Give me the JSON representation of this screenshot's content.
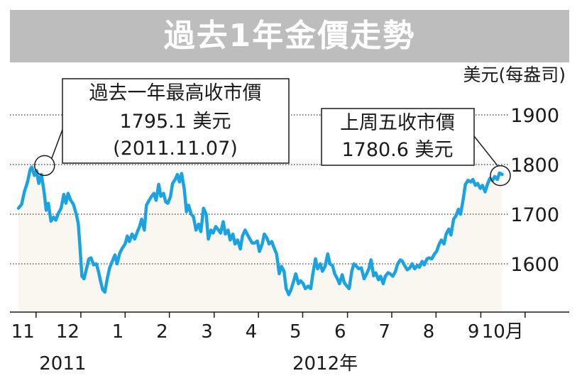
{
  "title": "過去1年金價走勢",
  "chart_data": {
    "type": "line",
    "title": "過去1年金價走勢",
    "ylabel": "美元(每盎司)",
    "ylim": [
      1500,
      1900
    ],
    "yticks": [
      1600,
      1700,
      1800,
      1900
    ],
    "ytick_labels": [
      "1600",
      "1700",
      "1800",
      "1900"
    ],
    "xlim": [
      2011.8,
      2012.87
    ],
    "xticks": [
      2011.833,
      2011.917,
      2012.0,
      2012.083,
      2012.167,
      2012.25,
      2012.333,
      2012.417,
      2012.5,
      2012.583,
      2012.667,
      2012.75
    ],
    "xtick_labels": [
      "11",
      "12",
      "1",
      "2",
      "3",
      "4",
      "5",
      "6",
      "7",
      "8",
      "9",
      "10月"
    ],
    "year_labels": [
      {
        "x": 2011.883,
        "label": "2011"
      },
      {
        "x": 2012.375,
        "label": "2012年"
      }
    ],
    "grid": true,
    "line_color": "#1aa3e0",
    "fill_color": "#faf7f1",
    "annotations": [
      {
        "lines": [
          "過去一年最高收市價",
          "1795.1 美元",
          "(2011.11.07)"
        ],
        "x": 2011.825,
        "y": 1795.1
      },
      {
        "lines": [
          "上周五收市價",
          "1780.6 美元"
        ],
        "x": 2012.77,
        "y": 1780.6
      }
    ],
    "series": [
      {
        "values": [
          [
            2011.8,
            1712
          ],
          [
            2011.806,
            1720
          ],
          [
            2011.811,
            1745
          ],
          [
            2011.817,
            1765
          ],
          [
            2011.822,
            1790
          ],
          [
            2011.825,
            1795
          ],
          [
            2011.83,
            1778
          ],
          [
            2011.834,
            1788
          ],
          [
            2011.838,
            1762
          ],
          [
            2011.843,
            1780
          ],
          [
            2011.848,
            1745
          ],
          [
            2011.852,
            1708
          ],
          [
            2011.856,
            1722
          ],
          [
            2011.861,
            1686
          ],
          [
            2011.866,
            1694
          ],
          [
            2011.87,
            1688
          ],
          [
            2011.875,
            1702
          ],
          [
            2011.88,
            1712
          ],
          [
            2011.885,
            1740
          ],
          [
            2011.889,
            1722
          ],
          [
            2011.893,
            1742
          ],
          [
            2011.898,
            1728
          ],
          [
            2011.903,
            1720
          ],
          [
            2011.908,
            1702
          ],
          [
            2011.912,
            1682
          ],
          [
            2011.915,
            1640
          ],
          [
            2011.919,
            1575
          ],
          [
            2011.923,
            1570
          ],
          [
            2011.928,
            1592
          ],
          [
            2011.932,
            1610
          ],
          [
            2011.936,
            1612
          ],
          [
            2011.941,
            1598
          ],
          [
            2011.946,
            1600
          ],
          [
            2011.95,
            1585
          ],
          [
            2011.954,
            1565
          ],
          [
            2011.958,
            1548
          ],
          [
            2011.962,
            1543
          ],
          [
            2011.967,
            1573
          ],
          [
            2011.971,
            1592
          ],
          [
            2011.976,
            1605
          ],
          [
            2011.981,
            1618
          ],
          [
            2011.985,
            1600
          ],
          [
            2011.99,
            1622
          ],
          [
            2011.995,
            1632
          ],
          [
            2012.0,
            1640
          ],
          [
            2012.004,
            1656
          ],
          [
            2012.008,
            1645
          ],
          [
            2012.013,
            1660
          ],
          [
            2012.018,
            1650
          ],
          [
            2012.022,
            1662
          ],
          [
            2012.027,
            1675
          ],
          [
            2012.031,
            1690
          ],
          [
            2012.036,
            1668
          ],
          [
            2012.04,
            1718
          ],
          [
            2012.045,
            1728
          ],
          [
            2012.049,
            1735
          ],
          [
            2012.054,
            1742
          ],
          [
            2012.058,
            1728
          ],
          [
            2012.063,
            1760
          ],
          [
            2012.067,
            1736
          ],
          [
            2012.072,
            1742
          ],
          [
            2012.076,
            1725
          ],
          [
            2012.08,
            1722
          ],
          [
            2012.085,
            1735
          ],
          [
            2012.089,
            1762
          ],
          [
            2012.094,
            1770
          ],
          [
            2012.098,
            1780
          ],
          [
            2012.102,
            1765
          ],
          [
            2012.106,
            1782
          ],
          [
            2012.111,
            1750
          ],
          [
            2012.115,
            1705
          ],
          [
            2012.119,
            1718
          ],
          [
            2012.124,
            1700
          ],
          [
            2012.128,
            1695
          ],
          [
            2012.133,
            1668
          ],
          [
            2012.138,
            1680
          ],
          [
            2012.142,
            1665
          ],
          [
            2012.147,
            1712
          ],
          [
            2012.152,
            1700
          ],
          [
            2012.156,
            1650
          ],
          [
            2012.161,
            1668
          ],
          [
            2012.165,
            1662
          ],
          [
            2012.17,
            1675
          ],
          [
            2012.175,
            1668
          ],
          [
            2012.179,
            1662
          ],
          [
            2012.184,
            1685
          ],
          [
            2012.188,
            1660
          ],
          [
            2012.193,
            1668
          ],
          [
            2012.197,
            1648
          ],
          [
            2012.202,
            1660
          ],
          [
            2012.206,
            1640
          ],
          [
            2012.211,
            1648
          ],
          [
            2012.216,
            1630
          ],
          [
            2012.22,
            1656
          ],
          [
            2012.225,
            1668
          ],
          [
            2012.229,
            1660
          ],
          [
            2012.234,
            1650
          ],
          [
            2012.238,
            1642
          ],
          [
            2012.243,
            1642
          ],
          [
            2012.248,
            1646
          ],
          [
            2012.252,
            1625
          ],
          [
            2012.257,
            1640
          ],
          [
            2012.261,
            1660
          ],
          [
            2012.266,
            1652
          ],
          [
            2012.27,
            1640
          ],
          [
            2012.275,
            1645
          ],
          [
            2012.28,
            1630
          ],
          [
            2012.284,
            1620
          ],
          [
            2012.289,
            1580
          ],
          [
            2012.293,
            1595
          ],
          [
            2012.298,
            1585
          ],
          [
            2012.302,
            1550
          ],
          [
            2012.307,
            1538
          ],
          [
            2012.311,
            1548
          ],
          [
            2012.316,
            1565
          ],
          [
            2012.32,
            1580
          ],
          [
            2012.325,
            1560
          ],
          [
            2012.329,
            1566
          ],
          [
            2012.334,
            1560
          ],
          [
            2012.338,
            1550
          ],
          [
            2012.343,
            1555
          ],
          [
            2012.348,
            1550
          ],
          [
            2012.352,
            1580
          ],
          [
            2012.357,
            1610
          ],
          [
            2012.361,
            1590
          ],
          [
            2012.366,
            1600
          ],
          [
            2012.37,
            1585
          ],
          [
            2012.375,
            1595
          ],
          [
            2012.38,
            1620
          ],
          [
            2012.384,
            1600
          ],
          [
            2012.389,
            1596
          ],
          [
            2012.393,
            1580
          ],
          [
            2012.398,
            1570
          ],
          [
            2012.402,
            1560
          ],
          [
            2012.407,
            1578
          ],
          [
            2012.411,
            1562
          ],
          [
            2012.416,
            1555
          ],
          [
            2012.42,
            1550
          ],
          [
            2012.425,
            1585
          ],
          [
            2012.429,
            1600
          ],
          [
            2012.434,
            1595
          ],
          [
            2012.438,
            1590
          ],
          [
            2012.443,
            1592
          ],
          [
            2012.448,
            1570
          ],
          [
            2012.452,
            1578
          ],
          [
            2012.457,
            1590
          ],
          [
            2012.461,
            1608
          ],
          [
            2012.466,
            1576
          ],
          [
            2012.47,
            1582
          ],
          [
            2012.475,
            1568
          ],
          [
            2012.479,
            1575
          ],
          [
            2012.484,
            1560
          ],
          [
            2012.488,
            1575
          ],
          [
            2012.493,
            1582
          ],
          [
            2012.497,
            1580
          ],
          [
            2012.502,
            1575
          ],
          [
            2012.507,
            1585
          ],
          [
            2012.511,
            1600
          ],
          [
            2012.516,
            1608
          ],
          [
            2012.52,
            1605
          ],
          [
            2012.525,
            1595
          ],
          [
            2012.529,
            1588
          ],
          [
            2012.534,
            1592
          ],
          [
            2012.538,
            1600
          ],
          [
            2012.543,
            1590
          ],
          [
            2012.548,
            1597
          ],
          [
            2012.552,
            1593
          ],
          [
            2012.557,
            1605
          ],
          [
            2012.561,
            1598
          ],
          [
            2012.566,
            1610
          ],
          [
            2012.57,
            1612
          ],
          [
            2012.575,
            1610
          ],
          [
            2012.58,
            1620
          ],
          [
            2012.584,
            1625
          ],
          [
            2012.589,
            1640
          ],
          [
            2012.593,
            1648
          ],
          [
            2012.598,
            1640
          ],
          [
            2012.602,
            1660
          ],
          [
            2012.607,
            1670
          ],
          [
            2012.611,
            1658
          ],
          [
            2012.616,
            1690
          ],
          [
            2012.62,
            1696
          ],
          [
            2012.625,
            1710
          ],
          [
            2012.629,
            1700
          ],
          [
            2012.634,
            1730
          ],
          [
            2012.638,
            1760
          ],
          [
            2012.643,
            1768
          ],
          [
            2012.648,
            1765
          ],
          [
            2012.652,
            1770
          ],
          [
            2012.657,
            1758
          ],
          [
            2012.661,
            1762
          ],
          [
            2012.666,
            1752
          ],
          [
            2012.67,
            1758
          ],
          [
            2012.675,
            1745
          ],
          [
            2012.68,
            1762
          ],
          [
            2012.684,
            1772
          ],
          [
            2012.689,
            1768
          ],
          [
            2012.693,
            1776
          ],
          [
            2012.698,
            1770
          ],
          [
            2012.702,
            1783
          ],
          [
            2012.707,
            1780
          ]
        ]
      }
    ]
  }
}
